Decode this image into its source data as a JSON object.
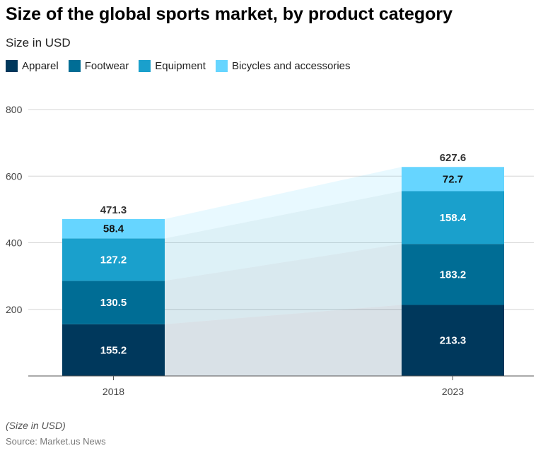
{
  "title": "Size of the global sports market, by product category",
  "subtitle": "Size in USD",
  "note": "(Size in USD)",
  "source": "Source: Market.us News",
  "chart_data": {
    "type": "bar",
    "stacked": true,
    "categories": [
      "2018",
      "2023"
    ],
    "series": [
      {
        "name": "Apparel",
        "values": [
          155.2,
          213.3
        ],
        "color": "#00385c",
        "label_color": "#ffffff"
      },
      {
        "name": "Footwear",
        "values": [
          130.5,
          183.2
        ],
        "color": "#006d95",
        "label_color": "#ffffff"
      },
      {
        "name": "Equipment",
        "values": [
          127.2,
          158.4
        ],
        "color": "#1aa0cc",
        "label_color": "#ffffff"
      },
      {
        "name": "Bicycles and accessories",
        "values": [
          58.4,
          72.7
        ],
        "color": "#66d5ff",
        "label_color": "#111111"
      }
    ],
    "totals": [
      "471.3",
      "627.6"
    ],
    "value_labels": [
      [
        "155.2",
        "130.5",
        "127.2",
        "58.4"
      ],
      [
        "213.3",
        "183.2",
        "158.4",
        "72.7"
      ]
    ],
    "ylim": [
      0,
      800
    ],
    "yticks": [
      "200",
      "400",
      "600",
      "800"
    ],
    "grid": true,
    "legend": "top-left"
  }
}
